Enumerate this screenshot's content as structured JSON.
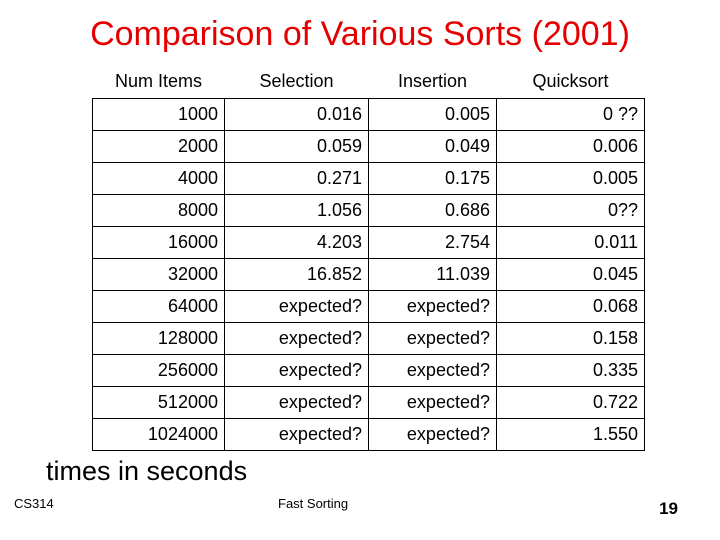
{
  "slide": {
    "title": "Comparison of Various Sorts (2001)",
    "note": "times in seconds",
    "footer_left": "CS314",
    "footer_center": "Fast Sorting",
    "page_number": "19"
  },
  "table": {
    "headers": [
      "Num Items",
      "Selection",
      "Insertion",
      "Quicksort"
    ],
    "rows": [
      [
        "1000",
        "0.016",
        "0.005",
        "0 ??"
      ],
      [
        "2000",
        "0.059",
        "0.049",
        "0.006"
      ],
      [
        "4000",
        "0.271",
        "0.175",
        "0.005"
      ],
      [
        "8000",
        "1.056",
        "0.686",
        "0??"
      ],
      [
        "16000",
        "4.203",
        "2.754",
        "0.011"
      ],
      [
        "32000",
        "16.852",
        "11.039",
        "0.045"
      ],
      [
        "64000",
        "expected?",
        "expected?",
        "0.068"
      ],
      [
        "128000",
        "expected?",
        "expected?",
        "0.158"
      ],
      [
        "256000",
        "expected?",
        "expected?",
        "0.335"
      ],
      [
        "512000",
        "expected?",
        "expected?",
        "0.722"
      ],
      [
        "1024000",
        "expected?",
        "expected?",
        "1.550"
      ]
    ]
  },
  "colors": {
    "title": "#e40000",
    "text": "#000000",
    "background": "#ffffff"
  }
}
